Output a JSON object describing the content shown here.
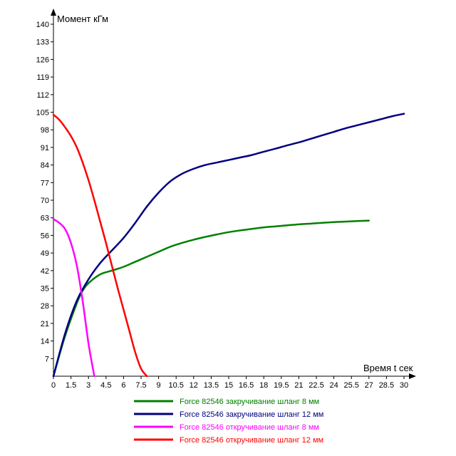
{
  "chart_data": {
    "type": "line",
    "xlabel": "Время t сек",
    "ylabel": "Момент кГм",
    "xlim": [
      0,
      30
    ],
    "ylim": [
      0,
      140
    ],
    "x_ticks": [
      "0",
      "1.5",
      "3",
      "4.5",
      "6",
      "7.5",
      "9",
      "10.5",
      "12",
      "13.5",
      "15",
      "16.5",
      "18",
      "19.5",
      "21",
      "22.5",
      "24",
      "25.5",
      "27",
      "28.5",
      "30"
    ],
    "y_ticks": [
      "7",
      "14",
      "21",
      "28",
      "35",
      "42",
      "49",
      "56",
      "63",
      "70",
      "77",
      "84",
      "91",
      "98",
      "105",
      "112",
      "119",
      "126",
      "133",
      "140"
    ],
    "grid": false,
    "legend_position": "bottom",
    "series": [
      {
        "name": "Force 82546 закручивание шланг 8 мм",
        "color": "#008000",
        "x": [
          0,
          1,
          2,
          2.5,
          3,
          4,
          5,
          6,
          7,
          8,
          9,
          10,
          11,
          12,
          13,
          14,
          15,
          16,
          17,
          18,
          19,
          20,
          21,
          22,
          23,
          24,
          25,
          26,
          27
        ],
        "y": [
          0,
          16,
          29,
          34,
          37,
          40.5,
          42,
          43.5,
          45.5,
          47.5,
          49.5,
          51.5,
          53,
          54.3,
          55.4,
          56.4,
          57.3,
          58,
          58.6,
          59.2,
          59.6,
          60,
          60.4,
          60.7,
          61,
          61.3,
          61.5,
          61.7,
          61.9
        ]
      },
      {
        "name": "Force 82546 закручивание шланг 12 мм",
        "color": "#000080",
        "x": [
          0,
          1,
          2,
          3,
          4,
          5,
          6,
          7,
          8,
          9,
          10,
          11,
          12,
          13,
          14,
          15,
          16,
          17,
          18,
          19,
          20,
          21,
          22,
          23,
          24,
          25,
          26,
          27,
          28,
          29,
          30
        ],
        "y": [
          0,
          17,
          30,
          38.5,
          45,
          50,
          55,
          61,
          67.5,
          73,
          77.5,
          80.5,
          82.5,
          84,
          85,
          86,
          87,
          88,
          89.3,
          90.5,
          91.8,
          93,
          94.4,
          95.8,
          97.2,
          98.6,
          99.8,
          101,
          102.2,
          103.4,
          104.4
        ]
      },
      {
        "name": "Force 82546 откручивание шланг 8 мм",
        "color": "#ff00ff",
        "x": [
          0,
          0.5,
          1,
          1.5,
          2,
          2.5,
          3,
          3.5
        ],
        "y": [
          62.5,
          61,
          58.5,
          53,
          44,
          30,
          13,
          0
        ]
      },
      {
        "name": "Force 82546 откручивание шланг 12 мм",
        "color": "#ff0000",
        "x": [
          0,
          0.5,
          1,
          1.5,
          2,
          2.5,
          3,
          3.5,
          4,
          4.5,
          5,
          5.5,
          6,
          6.5,
          7,
          7.5,
          8
        ],
        "y": [
          104,
          102,
          99,
          95.5,
          91,
          85,
          78,
          70,
          61.5,
          53,
          44,
          35,
          26.5,
          18,
          9.5,
          3,
          0
        ]
      }
    ]
  }
}
